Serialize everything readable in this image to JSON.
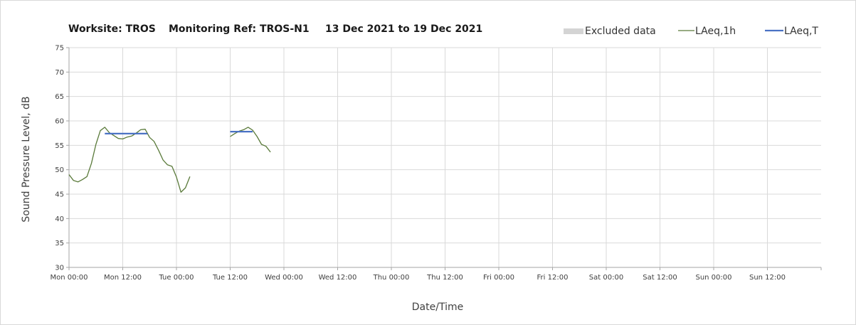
{
  "chart_data": {
    "type": "line",
    "title": "Worksite: TROS    Monitoring Ref: TROS-N1     13 Dec 2021 to 19 Dec 2021",
    "title_parts": [
      "Worksite: TROS",
      "Monitoring Ref: TROS-N1",
      "13 Dec 2021 to 19 Dec 2021"
    ],
    "xlabel": "Date/Time",
    "ylabel": "Sound Pressure Level, dB",
    "x_unit": "hours since Mon 00:00",
    "xlim": [
      0,
      168
    ],
    "ylim": [
      30,
      75
    ],
    "y_ticks": [
      30,
      35,
      40,
      45,
      50,
      55,
      60,
      65,
      70,
      75
    ],
    "x_ticks": [
      {
        "x": 0,
        "label": "Mon 00:00"
      },
      {
        "x": 12,
        "label": "Mon 12:00"
      },
      {
        "x": 24,
        "label": "Tue 00:00"
      },
      {
        "x": 36,
        "label": "Tue 12:00"
      },
      {
        "x": 48,
        "label": "Wed 00:00"
      },
      {
        "x": 60,
        "label": "Wed 12:00"
      },
      {
        "x": 72,
        "label": "Thu 00:00"
      },
      {
        "x": 84,
        "label": "Thu 12:00"
      },
      {
        "x": 96,
        "label": "Fri 00:00"
      },
      {
        "x": 108,
        "label": "Fri 12:00"
      },
      {
        "x": 120,
        "label": "Sat 00:00"
      },
      {
        "x": 132,
        "label": "Sat 12:00"
      },
      {
        "x": 144,
        "label": "Sun 00:00"
      },
      {
        "x": 156,
        "label": "Sun 12:00"
      }
    ],
    "grid": true,
    "legend_position": "top-right",
    "legend": [
      {
        "name": "Excluded data",
        "kind": "box",
        "color": "#d4d4d4"
      },
      {
        "name": "LAeq,1h",
        "kind": "line",
        "color": "#5a7a3a"
      },
      {
        "name": "LAeq,T",
        "kind": "line",
        "color": "#4a72c4"
      }
    ],
    "series": [
      {
        "name": "LAeq,1h",
        "color": "#5a7a3a",
        "segments": [
          [
            [
              0,
              49.0
            ],
            [
              1,
              47.8
            ],
            [
              2,
              47.5
            ],
            [
              3,
              48.0
            ],
            [
              4,
              48.6
            ],
            [
              5,
              51.3
            ],
            [
              6,
              55.2
            ],
            [
              7,
              58.0
            ],
            [
              8,
              58.7
            ],
            [
              9,
              57.6
            ],
            [
              10,
              57.0
            ],
            [
              11,
              56.4
            ],
            [
              12,
              56.3
            ],
            [
              13,
              56.7
            ],
            [
              14,
              56.9
            ],
            [
              15,
              57.5
            ],
            [
              16,
              58.2
            ],
            [
              17,
              58.3
            ],
            [
              18,
              56.6
            ],
            [
              19,
              55.8
            ],
            [
              20,
              54.0
            ],
            [
              21,
              52.0
            ],
            [
              22,
              51.0
            ],
            [
              23,
              50.7
            ],
            [
              24,
              48.5
            ],
            [
              25,
              45.4
            ],
            [
              26,
              46.3
            ],
            [
              27,
              48.6
            ]
          ],
          [
            [
              36,
              56.8
            ],
            [
              37,
              57.4
            ],
            [
              38,
              57.9
            ],
            [
              39,
              58.2
            ],
            [
              40,
              58.7
            ],
            [
              41,
              58.1
            ],
            [
              42,
              56.8
            ],
            [
              43,
              55.2
            ],
            [
              44,
              54.8
            ],
            [
              45,
              53.6
            ]
          ]
        ]
      },
      {
        "name": "LAeq,T",
        "color": "#4a72c4",
        "segments": [
          [
            [
              8,
              57.4
            ],
            [
              17.5,
              57.4
            ]
          ],
          [
            [
              36,
              57.8
            ],
            [
              41,
              57.8
            ]
          ]
        ]
      }
    ]
  }
}
